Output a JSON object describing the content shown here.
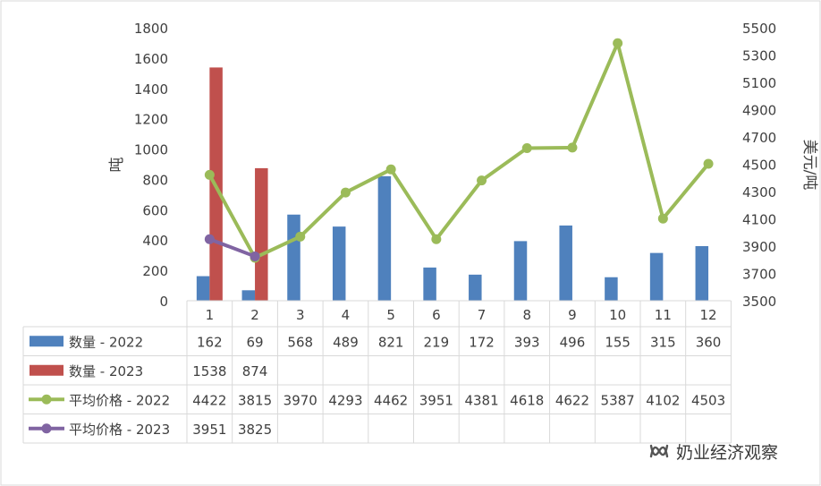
{
  "chart_data": {
    "type": "bar+line",
    "categories": [
      "1",
      "2",
      "3",
      "4",
      "5",
      "6",
      "7",
      "8",
      "9",
      "10",
      "11",
      "12"
    ],
    "y_left": {
      "label": "吨",
      "ticks": [
        "0",
        "200",
        "400",
        "600",
        "800",
        "1000",
        "1200",
        "1400",
        "1600",
        "1800"
      ],
      "range": [
        0,
        1800
      ]
    },
    "y_right": {
      "label": "美元/吨",
      "ticks": [
        "3500",
        "3700",
        "3900",
        "4100",
        "4300",
        "4500",
        "4700",
        "4900",
        "5100",
        "5300",
        "5500"
      ],
      "range": [
        3500,
        5500
      ]
    },
    "series": [
      {
        "name": "数量 - 2022",
        "kind": "bar",
        "axis": "left",
        "color": "#4f81bd",
        "values": [
          162,
          69,
          568,
          489,
          821,
          219,
          172,
          393,
          496,
          155,
          315,
          360
        ]
      },
      {
        "name": "数量 - 2023",
        "kind": "bar",
        "axis": "left",
        "color": "#c0504d",
        "values": [
          1538,
          874,
          null,
          null,
          null,
          null,
          null,
          null,
          null,
          null,
          null,
          null
        ]
      },
      {
        "name": "平均价格 - 2022",
        "kind": "line",
        "axis": "right",
        "color": "#9bbb59",
        "values": [
          4422,
          3815,
          3970,
          4293,
          4462,
          3951,
          4381,
          4618,
          4622,
          5387,
          4102,
          4503
        ]
      },
      {
        "name": "平均价格 - 2023",
        "kind": "line",
        "axis": "right",
        "color": "#8064a2",
        "values": [
          3951,
          3825,
          null,
          null,
          null,
          null,
          null,
          null,
          null,
          null,
          null,
          null
        ]
      }
    ],
    "data_table": true,
    "grid": false
  },
  "watermark": {
    "text": "奶业经济观察",
    "icon": "wechat-channel-icon"
  }
}
